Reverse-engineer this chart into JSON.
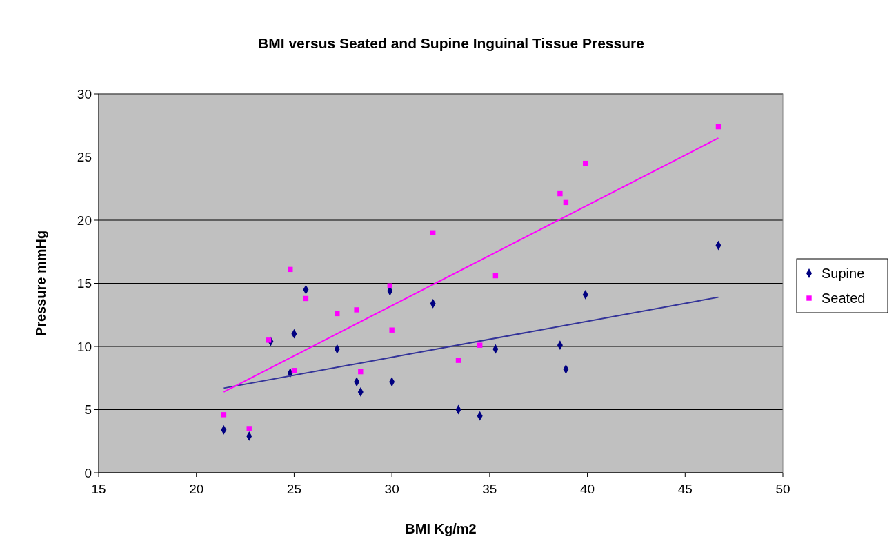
{
  "chart_data": {
    "type": "scatter",
    "title": "BMI versus Seated and Supine Inguinal Tissue Pressure",
    "xlabel": "BMI Kg/m2",
    "ylabel": "Pressure mmHg",
    "xlim": [
      15,
      50
    ],
    "xticks": [
      15,
      20,
      25,
      30,
      35,
      40,
      45,
      50
    ],
    "ylim": [
      0,
      30
    ],
    "yticks": [
      0,
      5,
      10,
      15,
      20,
      25,
      30
    ],
    "grid": "y",
    "legend": "right",
    "series": [
      {
        "name": "Supine",
        "color": "#000080",
        "marker": "diamond",
        "x": [
          21.4,
          22.7,
          23.8,
          24.8,
          25.0,
          25.6,
          27.2,
          28.2,
          28.4,
          29.9,
          30.0,
          32.1,
          33.4,
          34.5,
          35.3,
          38.6,
          38.9,
          39.9,
          46.7
        ],
        "values": [
          3.4,
          2.9,
          10.4,
          7.9,
          11.0,
          14.5,
          9.8,
          7.2,
          6.4,
          14.4,
          7.2,
          13.4,
          5.0,
          4.5,
          9.8,
          10.1,
          8.2,
          14.1,
          18.0
        ]
      },
      {
        "name": "Seated",
        "color": "#ff00ff",
        "marker": "square",
        "x": [
          21.4,
          22.7,
          23.7,
          24.8,
          25.0,
          25.6,
          27.2,
          28.2,
          28.4,
          29.9,
          30.0,
          32.1,
          33.4,
          34.5,
          35.3,
          38.6,
          38.9,
          39.9,
          46.7
        ],
        "values": [
          4.6,
          3.5,
          10.5,
          16.1,
          8.1,
          13.8,
          12.6,
          12.9,
          8.0,
          14.8,
          11.3,
          19.0,
          8.9,
          10.1,
          15.6,
          22.1,
          21.4,
          24.5,
          27.4
        ]
      },
      {
        "type": "line",
        "color": "#333399",
        "marker": "none",
        "x": [
          21.4,
          46.7
        ],
        "values": [
          6.7,
          13.9
        ]
      },
      {
        "type": "line",
        "color": "#ff00ff",
        "marker": "none",
        "x": [
          21.4,
          46.7
        ],
        "values": [
          6.4,
          26.5
        ]
      }
    ]
  }
}
